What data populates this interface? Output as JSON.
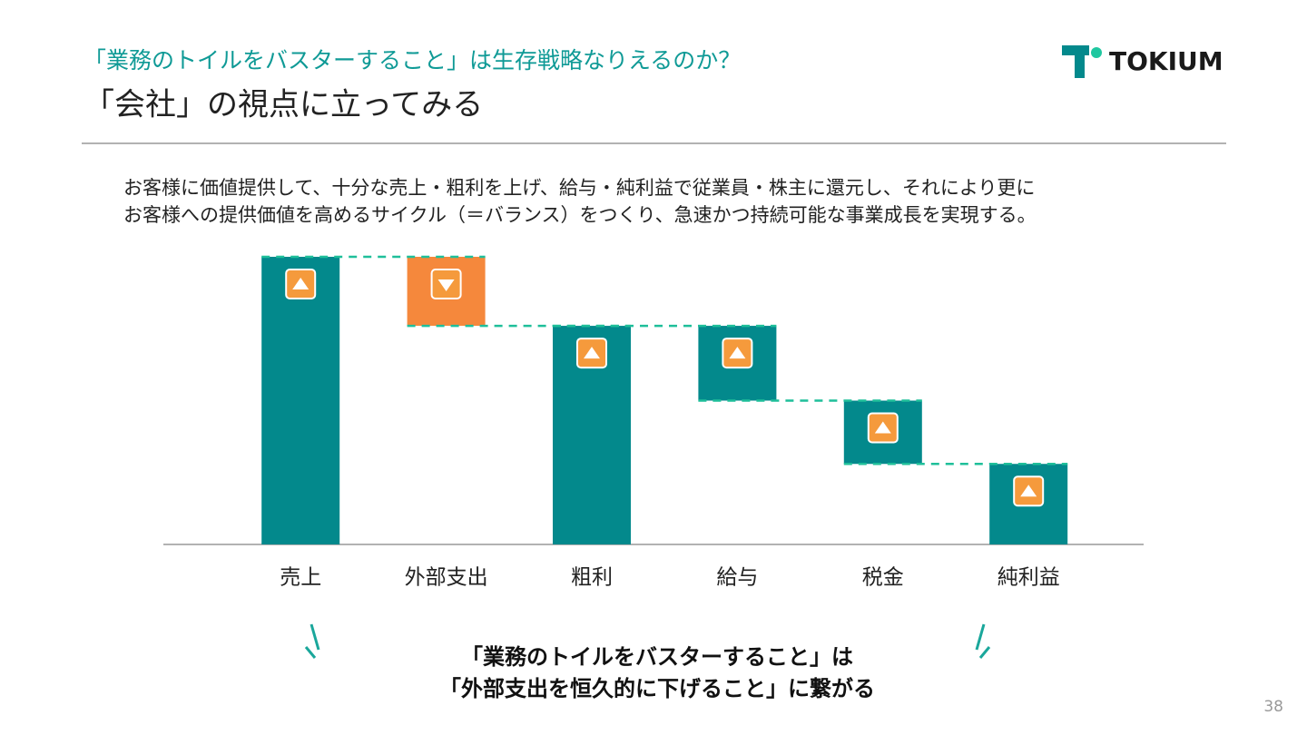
{
  "header": {
    "subtitle": "「業務のトイルをバスターすること」は生存戦略なりえるのか？",
    "title": "「会社」の視点に立ってみる",
    "logo": "TOKIUM"
  },
  "body": {
    "lines": [
      "お客様に価値提供して、十分な売上・粗利を上げ、給与・純利益で従業員・株主に還元し、それにより更に",
      "お客様への提供価値を高めるサイクル（＝バランス）をつくり、急速かつ持続可能な事業成長を実現する。"
    ]
  },
  "chart_data": {
    "type": "waterfall",
    "categories": [
      "売上",
      "外部支出",
      "粗利",
      "給与",
      "税金",
      "純利益"
    ],
    "values": [
      100,
      -24,
      76,
      -26,
      -22,
      28
    ],
    "measure": [
      "absolute",
      "relative",
      "absolute",
      "relative",
      "relative",
      "absolute"
    ],
    "colors": [
      "#03898c",
      "#f5883c",
      "#03898c",
      "#03898c",
      "#03898c",
      "#03898c"
    ],
    "markers": [
      "up",
      "down",
      "up",
      "up",
      "up",
      "up"
    ],
    "ylim": [
      0,
      100
    ]
  },
  "callout": {
    "lines": [
      "「業務のトイルをバスターすること」は",
      "「外部支出を恒久的に下げること」に繋がる"
    ]
  },
  "page_number": "38"
}
